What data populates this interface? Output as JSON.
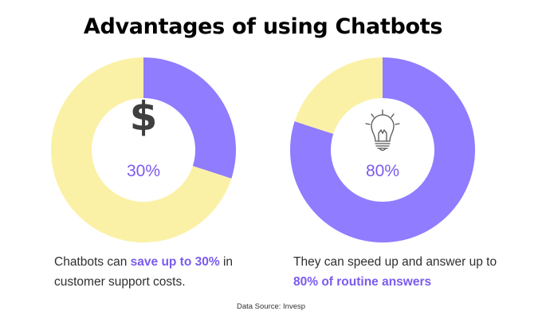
{
  "title": "Advantages of using Chatbots",
  "chart_data": [
    {
      "type": "pie",
      "variant": "donut",
      "icon": "dollar-sign-icon",
      "center_label": "30%",
      "values": [
        30,
        70
      ],
      "colors": [
        "#8f7cff",
        "#fbf1a6"
      ],
      "caption": {
        "before": "Chatbots can ",
        "highlight": "save up to 30%",
        "after": " in customer support costs."
      }
    },
    {
      "type": "pie",
      "variant": "donut",
      "icon": "lightbulb-icon",
      "center_label": "80%",
      "values": [
        80,
        20
      ],
      "colors": [
        "#8f7cff",
        "#fbf1a6"
      ],
      "caption": {
        "before": "They can speed up and answer up to ",
        "highlight": "80% of routine answers",
        "after": ""
      }
    }
  ],
  "source": "Data Source: Invesp"
}
